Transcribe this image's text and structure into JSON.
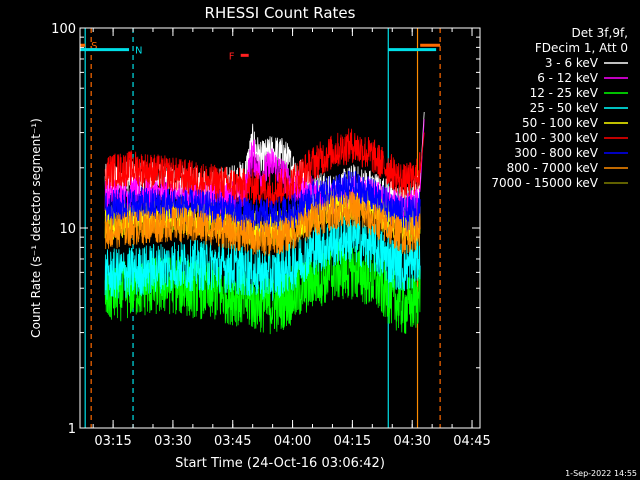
{
  "chart_data": {
    "type": "line",
    "title": "RHESSI Count Rates",
    "xlabel": "Start Time (24-Oct-16 03:06:42)",
    "ylabel": "Count Rate (s⁻¹ detector segment⁻¹)",
    "y_scale": "log",
    "ylim": [
      1,
      100
    ],
    "y_ticks": [
      {
        "v": 1,
        "label": "1"
      },
      {
        "v": 10,
        "label": "10"
      },
      {
        "v": 100,
        "label": "100"
      }
    ],
    "xlim": [
      "03:06:42",
      "04:47:00"
    ],
    "x_ticks": [
      "03:15",
      "03:30",
      "03:45",
      "04:00",
      "04:15",
      "04:30",
      "04:45"
    ],
    "legend_header": [
      "Det 3f,9f,",
      "FDecim 1, Att 0"
    ],
    "series": [
      {
        "name": "3 - 6 keV",
        "color": "#ffffff",
        "points": [
          [
            "03:13",
            17
          ],
          [
            "03:20",
            18
          ],
          [
            "03:30",
            17
          ],
          [
            "03:40",
            16
          ],
          [
            "03:45",
            17
          ],
          [
            "03:48",
            18
          ],
          [
            "03:50",
            27
          ],
          [
            "03:52",
            22
          ],
          [
            "03:55",
            24
          ],
          [
            "03:58",
            23
          ],
          [
            "04:00",
            20
          ],
          [
            "04:05",
            16
          ],
          [
            "04:10",
            15
          ],
          [
            "04:15",
            17
          ],
          [
            "04:20",
            16
          ],
          [
            "04:25",
            14
          ],
          [
            "04:28",
            13
          ],
          [
            "04:31",
            15
          ],
          [
            "04:32",
            16
          ]
        ]
      },
      {
        "name": "6 - 12 keV",
        "color": "#ff00ff",
        "points": [
          [
            "03:13",
            14.5
          ],
          [
            "03:20",
            15
          ],
          [
            "03:30",
            14.5
          ],
          [
            "03:40",
            14
          ],
          [
            "03:45",
            14.5
          ],
          [
            "03:48",
            15
          ],
          [
            "03:50",
            24
          ],
          [
            "03:52",
            18
          ],
          [
            "03:55",
            21
          ],
          [
            "03:58",
            18
          ],
          [
            "04:00",
            16
          ],
          [
            "04:05",
            15
          ],
          [
            "04:10",
            14
          ],
          [
            "04:15",
            15
          ],
          [
            "04:20",
            14.5
          ],
          [
            "04:25",
            13
          ],
          [
            "04:28",
            12
          ],
          [
            "04:31",
            13
          ],
          [
            "04:32",
            14
          ]
        ]
      },
      {
        "name": "12 - 25 keV",
        "color": "#00ff00",
        "points": [
          [
            "03:13",
            4.6
          ],
          [
            "03:20",
            5
          ],
          [
            "03:30",
            5.2
          ],
          [
            "03:40",
            4.8
          ],
          [
            "03:45",
            4.6
          ],
          [
            "03:50",
            4.3
          ],
          [
            "03:55",
            4.1
          ],
          [
            "04:00",
            4.6
          ],
          [
            "04:05",
            5.5
          ],
          [
            "04:10",
            6
          ],
          [
            "04:15",
            6.2
          ],
          [
            "04:20",
            5.5
          ],
          [
            "04:25",
            4.5
          ],
          [
            "04:28",
            4
          ],
          [
            "04:31",
            4.3
          ],
          [
            "04:32",
            5
          ]
        ]
      },
      {
        "name": "25 - 50 keV",
        "color": "#00ffff",
        "points": [
          [
            "03:13",
            5.8
          ],
          [
            "03:20",
            6
          ],
          [
            "03:30",
            6.5
          ],
          [
            "03:40",
            6.5
          ],
          [
            "03:45",
            6.3
          ],
          [
            "03:50",
            6.0
          ],
          [
            "03:55",
            5.8
          ],
          [
            "04:00",
            6.5
          ],
          [
            "04:05",
            7.8
          ],
          [
            "04:10",
            8.5
          ],
          [
            "04:15",
            9
          ],
          [
            "04:20",
            8
          ],
          [
            "04:25",
            6.8
          ],
          [
            "04:28",
            6.3
          ],
          [
            "04:31",
            6.8
          ],
          [
            "04:32",
            7.5
          ]
        ]
      },
      {
        "name": "50 - 100 keV",
        "color": "#ffff00",
        "points": [
          [
            "03:13",
            10.5
          ],
          [
            "03:20",
            11
          ],
          [
            "03:30",
            11.5
          ],
          [
            "03:40",
            11
          ],
          [
            "03:45",
            10.5
          ],
          [
            "03:50",
            10
          ],
          [
            "03:55",
            9.8
          ],
          [
            "04:00",
            10.5
          ],
          [
            "04:05",
            12
          ],
          [
            "04:10",
            13
          ],
          [
            "04:15",
            13.5
          ],
          [
            "04:20",
            12.5
          ],
          [
            "04:25",
            11
          ],
          [
            "04:28",
            10
          ],
          [
            "04:31",
            10.5
          ],
          [
            "04:32",
            11
          ]
        ]
      },
      {
        "name": "100 - 300 keV",
        "color": "#ff0000",
        "points": [
          [
            "03:13",
            19
          ],
          [
            "03:20",
            20
          ],
          [
            "03:30",
            18.5
          ],
          [
            "03:40",
            17
          ],
          [
            "03:45",
            16.5
          ],
          [
            "03:50",
            16
          ],
          [
            "03:55",
            15.5
          ],
          [
            "04:00",
            17
          ],
          [
            "04:05",
            21
          ],
          [
            "04:10",
            24
          ],
          [
            "04:15",
            26
          ],
          [
            "04:20",
            23
          ],
          [
            "04:25",
            19
          ],
          [
            "04:28",
            17
          ],
          [
            "04:31",
            18
          ],
          [
            "04:32",
            20
          ]
        ]
      },
      {
        "name": "300 - 800 keV",
        "color": "#0000ff",
        "points": [
          [
            "03:13",
            12.5
          ],
          [
            "03:20",
            13
          ],
          [
            "03:30",
            13
          ],
          [
            "03:40",
            12.5
          ],
          [
            "03:45",
            12
          ],
          [
            "03:50",
            11.5
          ],
          [
            "03:55",
            11.5
          ],
          [
            "04:00",
            12
          ],
          [
            "04:05",
            14
          ],
          [
            "04:10",
            15
          ],
          [
            "04:15",
            16
          ],
          [
            "04:20",
            14.5
          ],
          [
            "04:25",
            12.5
          ],
          [
            "04:28",
            11.5
          ],
          [
            "04:31",
            12
          ],
          [
            "04:32",
            12.5
          ]
        ]
      },
      {
        "name": "800 - 7000 keV",
        "color": "#ff8c00",
        "points": [
          [
            "03:13",
            9.5
          ],
          [
            "03:20",
            10
          ],
          [
            "03:30",
            10.5
          ],
          [
            "03:40",
            10
          ],
          [
            "03:45",
            9.5
          ],
          [
            "03:50",
            9
          ],
          [
            "03:55",
            8.8
          ],
          [
            "04:00",
            9.5
          ],
          [
            "04:05",
            11
          ],
          [
            "04:10",
            12
          ],
          [
            "04:15",
            12.5
          ],
          [
            "04:20",
            11
          ],
          [
            "04:25",
            9.8
          ],
          [
            "04:28",
            9
          ],
          [
            "04:31",
            9.5
          ],
          [
            "04:32",
            10
          ]
        ]
      },
      {
        "name": "7000 - 15000 keV",
        "color": "#808000",
        "points": []
      }
    ],
    "flags": [
      {
        "label": "S",
        "color": "#ff6a00",
        "segments": [
          [
            "03:06:42",
            "03:08:00"
          ],
          [
            "04:32:00",
            "04:37:00"
          ]
        ],
        "y": 82
      },
      {
        "label": "N",
        "color": "#00e0e8",
        "segments": [
          [
            "03:06:42",
            "03:19:00"
          ],
          [
            "04:24:00",
            "04:36:00"
          ]
        ],
        "y": 78
      },
      {
        "label": "F",
        "color": "#ff2020",
        "segments": [
          [
            "03:47:00",
            "03:49:00"
          ]
        ],
        "y": 73
      }
    ],
    "vlines": [
      {
        "t": "03:08:00",
        "color": "#00e0e8",
        "style": "solid"
      },
      {
        "t": "03:09:30",
        "color": "#ff6a00",
        "style": "dashed"
      },
      {
        "t": "03:20:00",
        "color": "#00e0e8",
        "style": "dashed"
      },
      {
        "t": "04:24:00",
        "color": "#00e0e8",
        "style": "solid"
      },
      {
        "t": "04:31:20",
        "color": "#ff8c00",
        "style": "solid"
      },
      {
        "t": "04:37:00",
        "color": "#ff6a00",
        "style": "dashed"
      }
    ],
    "spike_end": {
      "t": "04:33:00",
      "values": [
        38,
        35,
        30
      ]
    },
    "footer": "1-Sep-2022 14:55"
  }
}
